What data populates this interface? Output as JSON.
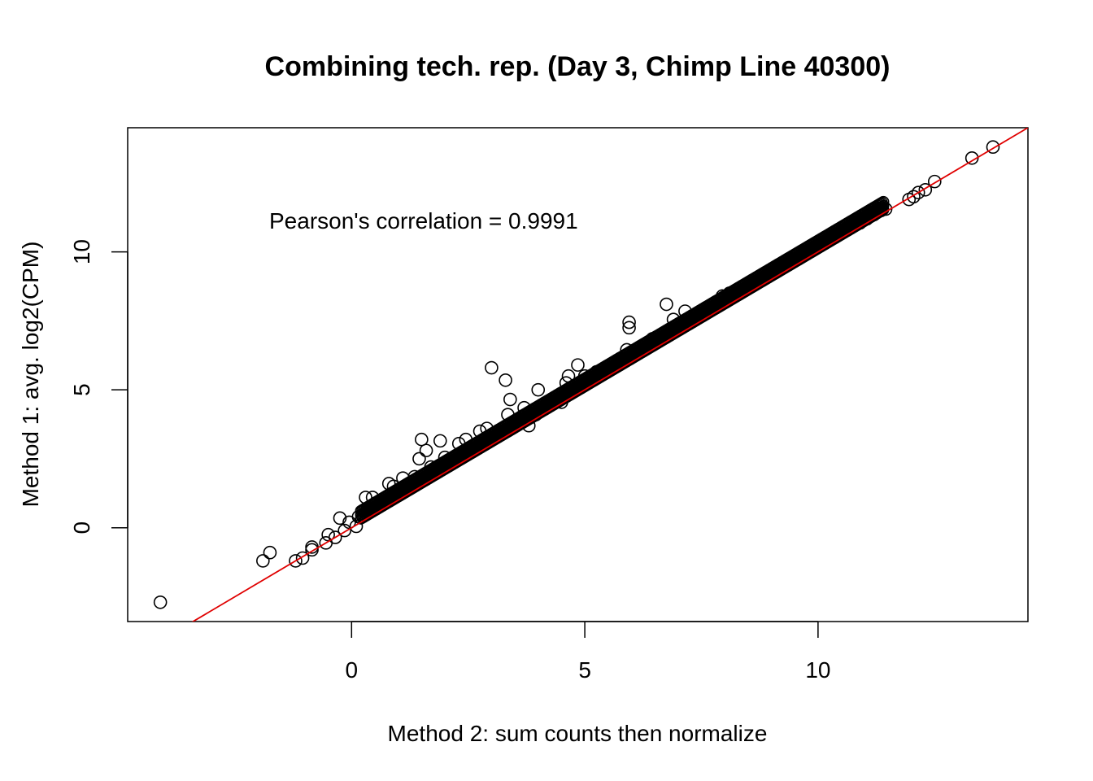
{
  "chart_data": {
    "type": "scatter",
    "title": "Combining tech. rep. (Day 3, Chimp Line 40300)",
    "xlabel": "Method 2: sum counts then normalize",
    "ylabel": "Method 1: avg. log2(CPM)",
    "xlim": [
      -4.8,
      14.5
    ],
    "ylim": [
      -3.4,
      14.5
    ],
    "xticks": [
      0,
      5,
      10
    ],
    "yticks": [
      0,
      5,
      10
    ],
    "xtick_labels": [
      "0",
      "5",
      "10"
    ],
    "ytick_labels": [
      "0",
      "5",
      "10"
    ],
    "annotation": "Pearson's correlation = 0.9991",
    "marker": "open-circle",
    "point_color": "#000000",
    "reference_line": {
      "type": "y=x",
      "color": "#e00000"
    },
    "dense_band": {
      "x_from": 0.2,
      "x_to": 11.4,
      "y_offset": 0.15
    },
    "points": [
      [
        -4.1,
        -2.7
      ],
      [
        -1.9,
        -1.2
      ],
      [
        -1.75,
        -0.9
      ],
      [
        -1.2,
        -1.2
      ],
      [
        -1.05,
        -1.1
      ],
      [
        -0.85,
        -0.7
      ],
      [
        -0.85,
        -0.8
      ],
      [
        -0.55,
        -0.55
      ],
      [
        -0.5,
        -0.25
      ],
      [
        -0.35,
        -0.35
      ],
      [
        -0.25,
        0.35
      ],
      [
        -0.15,
        -0.1
      ],
      [
        -0.05,
        0.2
      ],
      [
        0.1,
        0.05
      ],
      [
        0.15,
        0.4
      ],
      [
        0.3,
        1.1
      ],
      [
        0.45,
        1.1
      ],
      [
        0.35,
        0.7
      ],
      [
        0.6,
        0.85
      ],
      [
        0.8,
        1.6
      ],
      [
        0.9,
        1.5
      ],
      [
        1.1,
        1.8
      ],
      [
        1.35,
        1.85
      ],
      [
        1.45,
        2.5
      ],
      [
        1.5,
        3.2
      ],
      [
        1.6,
        2.8
      ],
      [
        1.7,
        2.2
      ],
      [
        1.9,
        3.15
      ],
      [
        2.0,
        2.55
      ],
      [
        2.3,
        3.05
      ],
      [
        2.45,
        3.2
      ],
      [
        2.75,
        3.5
      ],
      [
        2.9,
        3.6
      ],
      [
        3.0,
        5.8
      ],
      [
        3.3,
        5.35
      ],
      [
        3.35,
        4.1
      ],
      [
        3.4,
        4.65
      ],
      [
        3.55,
        3.9
      ],
      [
        3.7,
        4.35
      ],
      [
        3.8,
        3.7
      ],
      [
        3.95,
        4.1
      ],
      [
        4.0,
        5.0
      ],
      [
        4.2,
        4.5
      ],
      [
        4.5,
        4.55
      ],
      [
        4.6,
        5.25
      ],
      [
        4.65,
        5.5
      ],
      [
        4.85,
        5.9
      ],
      [
        5.0,
        5.5
      ],
      [
        5.25,
        5.65
      ],
      [
        5.55,
        5.8
      ],
      [
        5.75,
        6.1
      ],
      [
        5.9,
        6.45
      ],
      [
        5.95,
        7.25
      ],
      [
        5.95,
        7.45
      ],
      [
        6.3,
        6.65
      ],
      [
        6.45,
        6.85
      ],
      [
        6.75,
        8.1
      ],
      [
        6.9,
        7.55
      ],
      [
        7.15,
        7.85
      ],
      [
        7.4,
        7.75
      ],
      [
        7.75,
        8.1
      ],
      [
        7.95,
        8.4
      ],
      [
        8.1,
        8.5
      ],
      [
        8.4,
        8.6
      ],
      [
        8.65,
        8.9
      ],
      [
        8.95,
        9.2
      ],
      [
        9.2,
        9.5
      ],
      [
        9.45,
        9.75
      ],
      [
        9.7,
        10.0
      ],
      [
        10.0,
        10.2
      ],
      [
        10.2,
        10.4
      ],
      [
        10.4,
        10.6
      ],
      [
        10.65,
        10.9
      ],
      [
        10.9,
        11.05
      ],
      [
        11.05,
        11.2
      ],
      [
        11.2,
        11.35
      ],
      [
        11.35,
        11.5
      ],
      [
        11.45,
        11.55
      ],
      [
        11.95,
        11.9
      ],
      [
        12.05,
        12.0
      ],
      [
        12.15,
        12.15
      ],
      [
        12.3,
        12.25
      ],
      [
        12.5,
        12.55
      ],
      [
        13.3,
        13.4
      ],
      [
        13.75,
        13.8
      ]
    ]
  }
}
